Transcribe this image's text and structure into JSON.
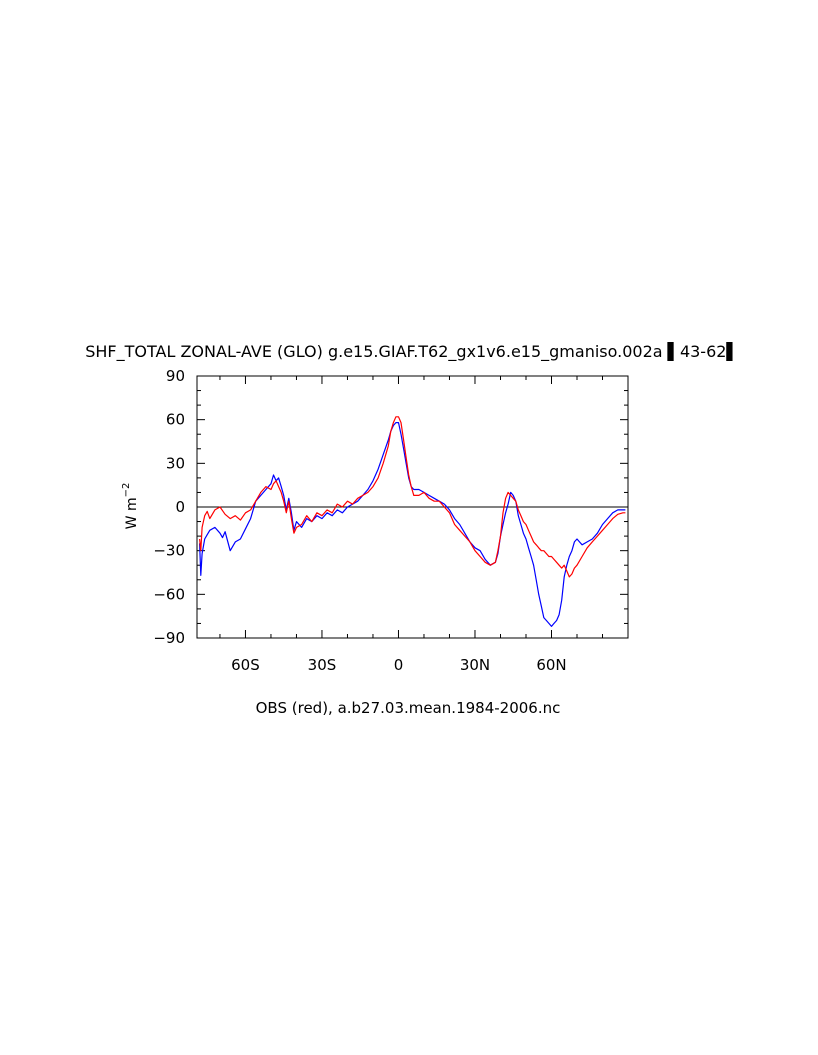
{
  "chart_data": {
    "type": "line",
    "title": "SHF_TOTAL ZONAL-AVE (GLO) g.e15.GIAF.T62_gx1v6.e15_gmaniso.002a ▌43-62▌",
    "xlabel": "OBS (red), a.b27.03.mean.1984-2006.nc",
    "ylabel_base": "W m",
    "ylabel_exp": "−2",
    "xlim": [
      -79,
      90
    ],
    "ylim": [
      -90,
      90
    ],
    "grid": false,
    "zero_line": true,
    "yticks": [
      {
        "value": 90,
        "label": "90"
      },
      {
        "value": 60,
        "label": "60"
      },
      {
        "value": 30,
        "label": "30"
      },
      {
        "value": 0,
        "label": "0"
      },
      {
        "value": -30,
        "label": "−30"
      },
      {
        "value": -60,
        "label": "−60"
      },
      {
        "value": -90,
        "label": "−90"
      }
    ],
    "xticks": [
      {
        "value": -60,
        "label": "60S"
      },
      {
        "value": -30,
        "label": "30S"
      },
      {
        "value": 0,
        "label": "0"
      },
      {
        "value": 30,
        "label": "30N"
      },
      {
        "value": 60,
        "label": "60N"
      }
    ],
    "series": [
      {
        "color": "#0000ff",
        "x": [
          -78,
          -77.5,
          -77,
          -76,
          -75,
          -74,
          -72,
          -70,
          -69,
          -68,
          -66,
          -64,
          -62,
          -60,
          -58,
          -56,
          -54,
          -52,
          -50,
          -49,
          -48,
          -47,
          -46,
          -45,
          -44,
          -43,
          -42,
          -41,
          -40,
          -38,
          -36,
          -34,
          -32,
          -30,
          -28,
          -26,
          -24,
          -22,
          -20,
          -18,
          -16,
          -14,
          -12,
          -10,
          -8,
          -6,
          -4,
          -3,
          -2,
          -1,
          0,
          1,
          2,
          3,
          4,
          5,
          6,
          8,
          10,
          12,
          14,
          16,
          18,
          20,
          22,
          24,
          26,
          28,
          30,
          32,
          34,
          36,
          38,
          39,
          40,
          41,
          42,
          43,
          44,
          45,
          46,
          47,
          48,
          49,
          50,
          51,
          52,
          53,
          54,
          55,
          56,
          57,
          58,
          59,
          60,
          61,
          62,
          63,
          64,
          65,
          66,
          67,
          68,
          69,
          70,
          71,
          72,
          74,
          76,
          78,
          80,
          82,
          84,
          86,
          88,
          89
        ],
        "y": [
          -25,
          -47,
          -32,
          -22,
          -19,
          -16,
          -14,
          -18,
          -21,
          -17,
          -30,
          -24,
          -22,
          -15,
          -8,
          4,
          8,
          12,
          16,
          22,
          18,
          20,
          14,
          8,
          -2,
          6,
          -4,
          -16,
          -10,
          -14,
          -8,
          -10,
          -6,
          -8,
          -4,
          -6,
          -2,
          -4,
          0,
          2,
          4,
          8,
          12,
          18,
          26,
          36,
          46,
          52,
          56,
          58,
          58,
          50,
          40,
          30,
          20,
          14,
          12,
          12,
          10,
          8,
          6,
          4,
          2,
          -2,
          -8,
          -12,
          -18,
          -24,
          -28,
          -30,
          -36,
          -40,
          -38,
          -32,
          -20,
          -12,
          -4,
          2,
          10,
          8,
          4,
          -6,
          -12,
          -18,
          -22,
          -28,
          -34,
          -40,
          -50,
          -60,
          -68,
          -76,
          -78,
          -80,
          -82,
          -80,
          -78,
          -74,
          -64,
          -48,
          -40,
          -34,
          -30,
          -24,
          -22,
          -24,
          -26,
          -24,
          -22,
          -18,
          -12,
          -8,
          -4,
          -2,
          -2,
          -2
        ]
      },
      {
        "color": "#ff0000",
        "x": [
          -78,
          -77.5,
          -77,
          -76,
          -75,
          -74,
          -72,
          -70,
          -68,
          -66,
          -64,
          -62,
          -60,
          -58,
          -56,
          -54,
          -52,
          -50,
          -49,
          -48,
          -47,
          -46,
          -45,
          -44,
          -43,
          -42,
          -41,
          -40,
          -38,
          -36,
          -34,
          -32,
          -30,
          -28,
          -26,
          -24,
          -22,
          -20,
          -18,
          -16,
          -14,
          -12,
          -10,
          -8,
          -6,
          -4,
          -3,
          -2,
          -1,
          0,
          1,
          2,
          3,
          4,
          5,
          6,
          8,
          10,
          12,
          14,
          16,
          18,
          20,
          22,
          24,
          26,
          28,
          30,
          32,
          34,
          36,
          38,
          39,
          40,
          41,
          42,
          43,
          44,
          45,
          46,
          47,
          48,
          49,
          50,
          51,
          52,
          53,
          54,
          55,
          56,
          57,
          58,
          59,
          60,
          61,
          62,
          63,
          64,
          65,
          66,
          67,
          68,
          69,
          70,
          72,
          74,
          76,
          78,
          80,
          82,
          84,
          86,
          88,
          89
        ],
        "y": [
          -22,
          -30,
          -14,
          -6,
          -3,
          -8,
          -2,
          0,
          -5,
          -8,
          -6,
          -9,
          -4,
          -2,
          4,
          10,
          14,
          12,
          16,
          18,
          14,
          10,
          4,
          -4,
          4,
          -8,
          -18,
          -14,
          -12,
          -6,
          -10,
          -4,
          -6,
          -2,
          -4,
          2,
          0,
          4,
          2,
          6,
          8,
          10,
          14,
          20,
          30,
          42,
          52,
          58,
          62,
          62,
          58,
          46,
          34,
          22,
          14,
          8,
          8,
          10,
          6,
          4,
          4,
          0,
          -4,
          -12,
          -16,
          -20,
          -24,
          -30,
          -34,
          -38,
          -40,
          -38,
          -30,
          -20,
          -4,
          6,
          10,
          8,
          6,
          4,
          -2,
          -6,
          -10,
          -12,
          -16,
          -20,
          -24,
          -26,
          -28,
          -30,
          -30,
          -32,
          -34,
          -34,
          -36,
          -38,
          -40,
          -42,
          -40,
          -44,
          -48,
          -46,
          -42,
          -40,
          -34,
          -28,
          -24,
          -20,
          -16,
          -12,
          -8,
          -5,
          -4,
          -4
        ]
      }
    ]
  }
}
